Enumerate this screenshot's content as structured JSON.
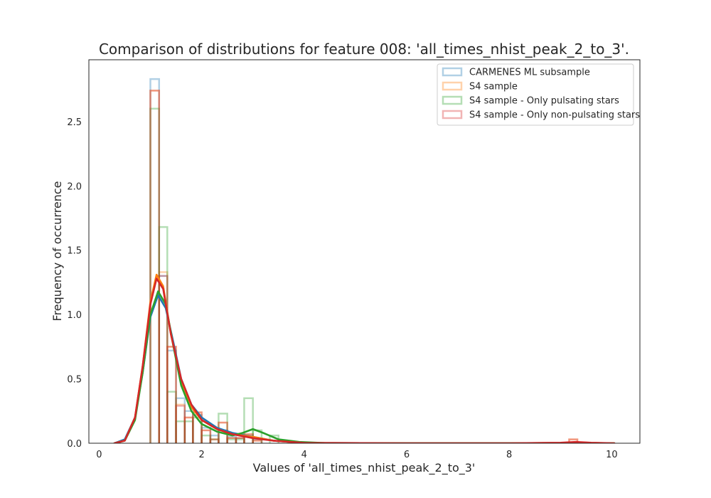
{
  "chart_data": {
    "type": "histogram+kde",
    "title": "Comparison of distributions for feature 008: 'all_times_nhist_peak_2_to_3'.",
    "xlabel": "Values of 'all_times_nhist_peak_2_to_3'",
    "ylabel": "Frequency of occurrence",
    "xlim": [
      -0.2,
      10.55
    ],
    "ylim": [
      0,
      2.98
    ],
    "xticks": [
      0,
      2,
      4,
      6,
      8,
      10
    ],
    "yticks": [
      0.0,
      0.5,
      1.0,
      1.5,
      2.0,
      2.5
    ],
    "xtick_labels": [
      "0",
      "2",
      "4",
      "6",
      "8",
      "10"
    ],
    "ytick_labels": [
      "0.0",
      "0.5",
      "1.0",
      "1.5",
      "2.0",
      "2.5"
    ],
    "grid": false,
    "legend_position": "top-right",
    "series": [
      {
        "name": "CARMENES ML subsample",
        "color": "#1f77b4",
        "hist_bins": [
          [
            1.0,
            1.17,
            2.83
          ],
          [
            1.17,
            1.33,
            1.3
          ],
          [
            1.33,
            1.5,
            0.72
          ],
          [
            1.5,
            1.67,
            0.35
          ],
          [
            1.67,
            1.83,
            0.25
          ],
          [
            1.83,
            2.0,
            0.22
          ],
          [
            2.0,
            2.17,
            0.12
          ],
          [
            2.17,
            2.33,
            0.06
          ],
          [
            2.33,
            2.5,
            0.1
          ],
          [
            2.5,
            2.67,
            0.05
          ],
          [
            2.67,
            2.83,
            0.04
          ],
          [
            2.83,
            3.0,
            0.06
          ],
          [
            3.0,
            3.17,
            0.03
          ]
        ],
        "kde_points": [
          [
            0.3,
            0.0
          ],
          [
            0.5,
            0.03
          ],
          [
            0.7,
            0.2
          ],
          [
            0.85,
            0.55
          ],
          [
            1.0,
            0.98
          ],
          [
            1.15,
            1.15
          ],
          [
            1.3,
            1.05
          ],
          [
            1.45,
            0.78
          ],
          [
            1.6,
            0.5
          ],
          [
            1.8,
            0.3
          ],
          [
            2.0,
            0.2
          ],
          [
            2.3,
            0.12
          ],
          [
            2.6,
            0.08
          ],
          [
            3.0,
            0.05
          ],
          [
            3.4,
            0.02
          ],
          [
            4.0,
            0.003
          ],
          [
            6.0,
            0.0
          ],
          [
            8.0,
            0.0
          ],
          [
            10.05,
            0.0
          ]
        ]
      },
      {
        "name": "S4 sample",
        "color": "#ff7f0e",
        "hist_bins": [
          [
            1.0,
            1.17,
            2.74
          ],
          [
            1.17,
            1.33,
            1.33
          ],
          [
            1.33,
            1.5,
            0.75
          ],
          [
            1.5,
            1.67,
            0.3
          ],
          [
            1.67,
            1.83,
            0.2
          ],
          [
            1.83,
            2.0,
            0.24
          ],
          [
            2.0,
            2.17,
            0.1
          ],
          [
            2.17,
            2.33,
            0.03
          ],
          [
            2.33,
            2.5,
            0.16
          ],
          [
            2.5,
            2.67,
            0.04
          ],
          [
            2.67,
            2.83,
            0.04
          ],
          [
            2.83,
            3.0,
            0.07
          ],
          [
            3.0,
            3.17,
            0.02
          ],
          [
            9.17,
            9.33,
            0.03
          ]
        ],
        "kde_points": [
          [
            0.3,
            0.0
          ],
          [
            0.5,
            0.02
          ],
          [
            0.7,
            0.2
          ],
          [
            0.85,
            0.6
          ],
          [
            1.0,
            1.1
          ],
          [
            1.12,
            1.31
          ],
          [
            1.25,
            1.22
          ],
          [
            1.4,
            0.85
          ],
          [
            1.6,
            0.48
          ],
          [
            1.8,
            0.28
          ],
          [
            2.0,
            0.18
          ],
          [
            2.3,
            0.11
          ],
          [
            2.6,
            0.07
          ],
          [
            3.0,
            0.05
          ],
          [
            3.4,
            0.02
          ],
          [
            4.0,
            0.003
          ],
          [
            6.0,
            0.0
          ],
          [
            8.0,
            0.0
          ],
          [
            9.0,
            0.003
          ],
          [
            9.3,
            0.008
          ],
          [
            9.6,
            0.003
          ],
          [
            10.05,
            0.0
          ]
        ]
      },
      {
        "name": "S4 sample - Only pulsating stars",
        "color": "#2ca02c",
        "hist_bins": [
          [
            1.0,
            1.17,
            2.6
          ],
          [
            1.17,
            1.33,
            1.68
          ],
          [
            1.33,
            1.5,
            0.4
          ],
          [
            1.5,
            1.67,
            0.17
          ],
          [
            1.67,
            1.83,
            0.17
          ],
          [
            1.83,
            2.0,
            0.2
          ],
          [
            2.0,
            2.17,
            0.06
          ],
          [
            2.17,
            2.33,
            0.03
          ],
          [
            2.33,
            2.5,
            0.23
          ],
          [
            2.5,
            2.67,
            0.03
          ],
          [
            2.67,
            2.83,
            0.03
          ],
          [
            2.83,
            3.0,
            0.35
          ],
          [
            3.0,
            3.17,
            0.1
          ],
          [
            3.33,
            3.5,
            0.06
          ]
        ],
        "kde_points": [
          [
            0.3,
            0.0
          ],
          [
            0.5,
            0.02
          ],
          [
            0.7,
            0.18
          ],
          [
            0.85,
            0.55
          ],
          [
            1.0,
            1.0
          ],
          [
            1.15,
            1.18
          ],
          [
            1.3,
            1.08
          ],
          [
            1.45,
            0.75
          ],
          [
            1.6,
            0.45
          ],
          [
            1.8,
            0.25
          ],
          [
            2.0,
            0.15
          ],
          [
            2.3,
            0.09
          ],
          [
            2.6,
            0.06
          ],
          [
            2.8,
            0.08
          ],
          [
            3.0,
            0.11
          ],
          [
            3.2,
            0.08
          ],
          [
            3.5,
            0.03
          ],
          [
            3.9,
            0.01
          ],
          [
            4.5,
            0.0
          ],
          [
            6.0,
            0.0
          ],
          [
            8.0,
            0.0
          ],
          [
            10.05,
            0.0
          ]
        ]
      },
      {
        "name": "S4 sample - Only non-pulsating stars",
        "color": "#d62728",
        "hist_bins": [
          [
            1.0,
            1.17,
            2.74
          ],
          [
            1.17,
            1.33,
            1.3
          ],
          [
            1.33,
            1.5,
            0.75
          ],
          [
            1.5,
            1.67,
            0.29
          ],
          [
            1.67,
            1.83,
            0.2
          ],
          [
            1.83,
            2.0,
            0.24
          ],
          [
            2.0,
            2.17,
            0.1
          ],
          [
            2.17,
            2.33,
            0.03
          ],
          [
            2.33,
            2.5,
            0.16
          ],
          [
            2.5,
            2.67,
            0.04
          ],
          [
            2.67,
            2.83,
            0.04
          ],
          [
            2.83,
            3.0,
            0.07
          ],
          [
            3.0,
            3.17,
            0.02
          ],
          [
            9.17,
            9.33,
            0.03
          ]
        ],
        "kde_points": [
          [
            0.3,
            0.0
          ],
          [
            0.5,
            0.02
          ],
          [
            0.7,
            0.2
          ],
          [
            0.85,
            0.6
          ],
          [
            1.0,
            1.08
          ],
          [
            1.12,
            1.28
          ],
          [
            1.25,
            1.2
          ],
          [
            1.4,
            0.85
          ],
          [
            1.6,
            0.5
          ],
          [
            1.8,
            0.3
          ],
          [
            2.0,
            0.18
          ],
          [
            2.3,
            0.11
          ],
          [
            2.6,
            0.07
          ],
          [
            3.0,
            0.04
          ],
          [
            3.4,
            0.02
          ],
          [
            4.0,
            0.003
          ],
          [
            6.0,
            0.0
          ],
          [
            8.0,
            0.0
          ],
          [
            9.0,
            0.004
          ],
          [
            9.3,
            0.01
          ],
          [
            9.6,
            0.004
          ],
          [
            10.05,
            0.0
          ]
        ]
      }
    ]
  }
}
